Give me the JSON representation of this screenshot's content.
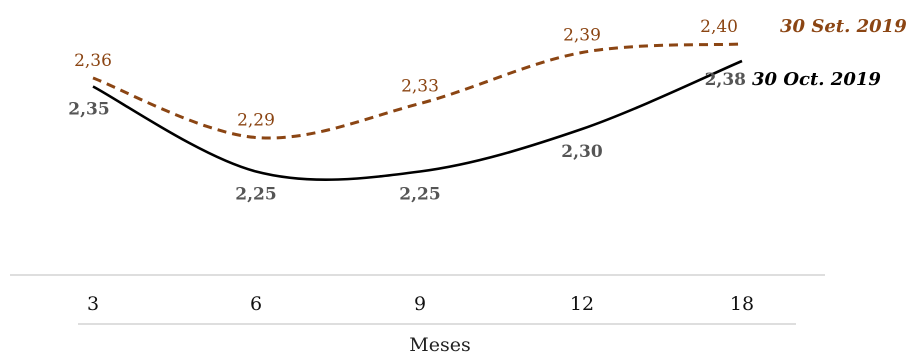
{
  "chart_data": {
    "type": "line",
    "categories": [
      "3",
      "6",
      "9",
      "12",
      "18"
    ],
    "xlabel": "Meses",
    "series": [
      {
        "name": "30 Set. 2019",
        "values": [
          2.36,
          2.29,
          2.33,
          2.39,
          2.4
        ],
        "labels": [
          "2,36",
          "2,29",
          "2,33",
          "2,39",
          "2,40"
        ],
        "color": "#8B4513",
        "style": "dashed"
      },
      {
        "name": "30 Oct. 2019",
        "values": [
          2.35,
          2.25,
          2.25,
          2.3,
          2.38
        ],
        "labels": [
          "2,35",
          "2,25",
          "2,25",
          "2,30",
          "2,38"
        ],
        "color": "#000000",
        "label_color": "#555555",
        "style": "solid"
      }
    ],
    "grid": false,
    "legend_placement": "right"
  }
}
